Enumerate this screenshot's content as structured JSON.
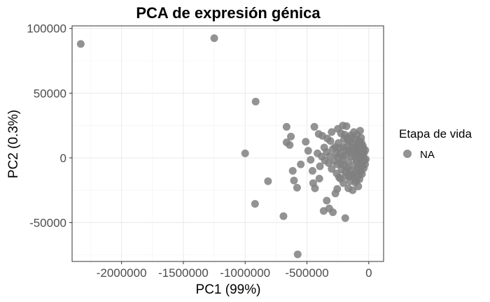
{
  "chart_data": {
    "type": "scatter",
    "title": "PCA de expresión génica",
    "xlabel": "PC1 (99%)",
    "ylabel": "PC2 (0.3%)",
    "xlim": [
      -2400000,
      120000
    ],
    "ylim": [
      -80000,
      102000
    ],
    "x_ticks": [
      -2000000,
      -1500000,
      -1000000,
      -500000,
      0
    ],
    "x_tick_labels": [
      "-2000000",
      "-1500000",
      "-1000000",
      "-500000",
      "0"
    ],
    "y_ticks": [
      -50000,
      0,
      50000,
      100000
    ],
    "y_tick_labels": [
      "-50000",
      "0",
      "50000",
      "100000"
    ],
    "grid": true,
    "legend": {
      "title": "Etapa de vida",
      "placement": "right",
      "entries": [
        "NA"
      ]
    },
    "series": [
      {
        "name": "NA",
        "color": "#808080",
        "points": [
          [
            -2330000,
            88000
          ],
          [
            -1250000,
            92500
          ],
          [
            -915000,
            43500
          ],
          [
            -1000000,
            3500
          ],
          [
            -920000,
            -35500
          ],
          [
            -815000,
            -18000
          ],
          [
            -690000,
            -45000
          ],
          [
            -575000,
            -74500
          ],
          [
            -665000,
            24000
          ],
          [
            -665000,
            12000
          ],
          [
            -640000,
            10000
          ],
          [
            -630000,
            16500
          ],
          [
            -615000,
            -10000
          ],
          [
            -605000,
            -17500
          ],
          [
            -580000,
            -23000
          ],
          [
            -550000,
            -5000
          ],
          [
            -510000,
            12500
          ],
          [
            -490000,
            5500
          ],
          [
            -470000,
            -1500
          ],
          [
            -455000,
            -10000
          ],
          [
            -450000,
            -19500
          ],
          [
            -435000,
            -23500
          ],
          [
            -400000,
            -16000
          ],
          [
            -365000,
            -41000
          ],
          [
            -340000,
            -33000
          ],
          [
            -320000,
            -39000
          ],
          [
            -290000,
            -42000
          ],
          [
            -270000,
            -27500
          ],
          [
            -255000,
            -24000
          ],
          [
            -190000,
            -46500
          ],
          [
            -440000,
            24000
          ],
          [
            -405000,
            18500
          ],
          [
            -375000,
            17000
          ],
          [
            -335000,
            15000
          ],
          [
            -310000,
            13000
          ],
          [
            -300000,
            20000
          ],
          [
            -270000,
            8500
          ],
          [
            -250000,
            22500
          ],
          [
            -225000,
            19000
          ],
          [
            -210000,
            25000
          ],
          [
            -195000,
            18000
          ],
          [
            -180000,
            24500
          ],
          [
            -170000,
            14000
          ],
          [
            -145000,
            17500
          ],
          [
            -120000,
            20000
          ],
          [
            -110000,
            14500
          ],
          [
            -95000,
            18000
          ],
          [
            -90000,
            10000
          ],
          [
            -70000,
            21000
          ],
          [
            -60000,
            12000
          ],
          [
            -45000,
            7500
          ],
          [
            -35000,
            -2000
          ],
          [
            -40000,
            -8000
          ],
          [
            -55000,
            -12500
          ],
          [
            -75000,
            -16500
          ],
          [
            -85000,
            -22000
          ],
          [
            -110000,
            -19000
          ],
          [
            -130000,
            -25000
          ],
          [
            -150000,
            -18000
          ],
          [
            -165000,
            -23500
          ],
          [
            -185000,
            -14000
          ],
          [
            -205000,
            -19500
          ],
          [
            -220000,
            -9000
          ],
          [
            -240000,
            -15000
          ],
          [
            -255000,
            -5000
          ],
          [
            -265000,
            3000
          ],
          [
            -280000,
            -2500
          ],
          [
            -290000,
            7000
          ],
          [
            -300000,
            -8500
          ],
          [
            -315000,
            1500
          ],
          [
            -325000,
            -4000
          ],
          [
            -340000,
            4500
          ],
          [
            -355000,
            -2000
          ],
          [
            -360000,
            8000
          ],
          [
            -380000,
            1000
          ],
          [
            -395000,
            -6500
          ],
          [
            -415000,
            3500
          ],
          [
            -260000,
            -12000
          ],
          [
            -245000,
            11500
          ],
          [
            -230000,
            4000
          ],
          [
            -215000,
            -1500
          ],
          [
            -205000,
            8500
          ],
          [
            -195000,
            -6000
          ],
          [
            -185000,
            2500
          ],
          [
            -175000,
            9000
          ],
          [
            -165000,
            -3000
          ],
          [
            -160000,
            5500
          ],
          [
            -150000,
            -9500
          ],
          [
            -140000,
            1000
          ],
          [
            -135000,
            11000
          ],
          [
            -125000,
            -5500
          ],
          [
            -118000,
            6500
          ],
          [
            -112000,
            -12000
          ],
          [
            -105000,
            3000
          ],
          [
            -98000,
            -2500
          ],
          [
            -92000,
            8500
          ],
          [
            -88000,
            -7500
          ],
          [
            -82000,
            1500
          ],
          [
            -78000,
            13000
          ],
          [
            -74000,
            -4500
          ],
          [
            -68000,
            4500
          ],
          [
            -64000,
            -10500
          ],
          [
            -58000,
            2000
          ],
          [
            -52000,
            -3500
          ],
          [
            -48000,
            9500
          ],
          [
            -44000,
            1000
          ],
          [
            -38000,
            4000
          ],
          [
            -30000,
            -5000
          ],
          [
            -28000,
            6000
          ],
          [
            -24000,
            -1000
          ],
          [
            -110000,
            0
          ],
          [
            -100000,
            5000
          ],
          [
            -95000,
            -9000
          ],
          [
            -85000,
            12000
          ],
          [
            -80000,
            -13500
          ],
          [
            -72000,
            9500
          ],
          [
            -66000,
            -1500
          ],
          [
            -62000,
            15500
          ],
          [
            -56000,
            -7000
          ],
          [
            -50000,
            5000
          ],
          [
            -130000,
            8000
          ],
          [
            -138000,
            -13000
          ],
          [
            -145000,
            4000
          ],
          [
            -155000,
            12500
          ],
          [
            -170000,
            -8000
          ],
          [
            -178000,
            6000
          ],
          [
            -190000,
            -11000
          ],
          [
            -200000,
            14500
          ],
          [
            -210000,
            1500
          ],
          [
            -225000,
            -4500
          ],
          [
            -235000,
            7500
          ],
          [
            -250000,
            500
          ],
          [
            -230000,
            -16000
          ],
          [
            -120000,
            -15000
          ],
          [
            -100000,
            -17500
          ],
          [
            -160000,
            -14500
          ],
          [
            -175000,
            15500
          ],
          [
            -140000,
            15500
          ]
        ]
      }
    ]
  }
}
